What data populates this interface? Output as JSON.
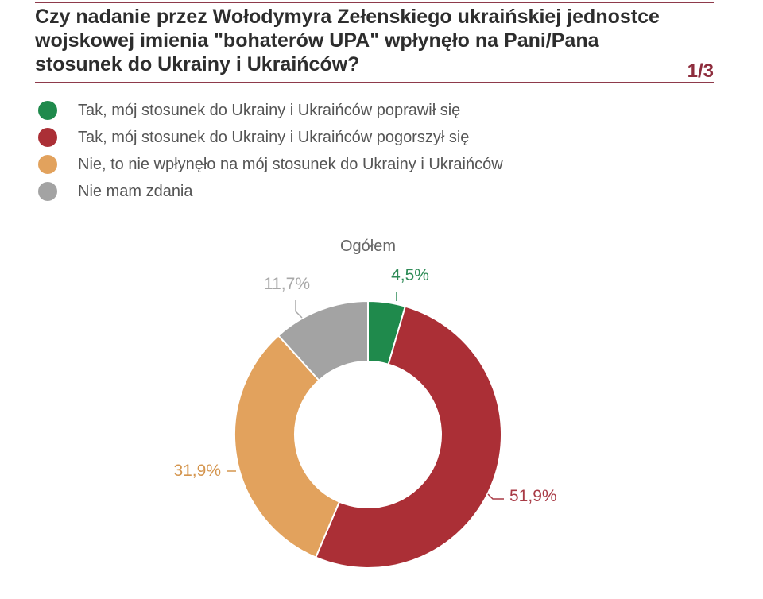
{
  "header": {
    "title": "Czy nadanie przez Wołodymyra Zełenskiego ukraińskiej jednostce wojskowej imienia \"bohaterów UPA\" wpłynęło na Pani/Pana stosunek do Ukrainy i Ukraińców?",
    "page_indicator": "1/3"
  },
  "colors": {
    "accent": "#8e3a4b",
    "green": "#1f8a4c",
    "red": "#ab2f36",
    "orange": "#e2a25d",
    "gray": "#a3a3a3"
  },
  "legend": [
    {
      "label": "Tak, mój stosunek do Ukrainy i Ukraińców poprawił się",
      "color": "#1f8a4c"
    },
    {
      "label": "Tak, mój stosunek do Ukrainy i Ukraińców pogorszył się",
      "color": "#ab2f36"
    },
    {
      "label": "Nie, to nie wpłynęło na mój stosunek do Ukrainy i Ukraińców",
      "color": "#e2a25d"
    },
    {
      "label": "Nie mam zdania",
      "color": "#a3a3a3"
    }
  ],
  "chart_data": {
    "type": "pie",
    "subtitle": "Ogółem",
    "donut": true,
    "slices": [
      {
        "label": "Tak, mój stosunek do Ukrainy i Ukraińców poprawił się",
        "value": 4.5,
        "value_label": "4,5%",
        "color": "#1f8a4c",
        "label_color": "#2e8b57"
      },
      {
        "label": "Tak, mój stosunek do Ukrainy i Ukraińców pogorszył się",
        "value": 51.9,
        "value_label": "51,9%",
        "color": "#ab2f36",
        "label_color": "#a83a45"
      },
      {
        "label": "Nie, to nie wpłynęło na mój stosunek do Ukrainy i Ukraińców",
        "value": 31.9,
        "value_label": "31,9%",
        "color": "#e2a25d",
        "label_color": "#d4954e"
      },
      {
        "label": "Nie mam zdania",
        "value": 11.7,
        "value_label": "11,7%",
        "color": "#a3a3a3",
        "label_color": "#a8a8a8"
      }
    ]
  }
}
